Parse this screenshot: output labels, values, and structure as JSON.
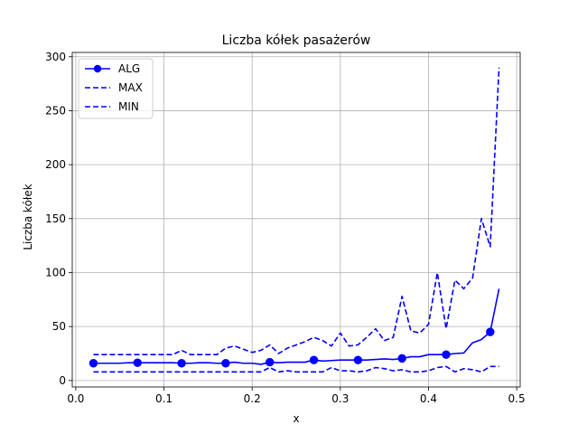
{
  "chart_data": {
    "type": "line",
    "title": "Liczba kółek pasażerów",
    "xlabel": "x",
    "ylabel": "Liczba kółek",
    "xlim": [
      -0.004,
      0.504
    ],
    "ylim": [
      -6,
      304
    ],
    "x_ticks": [
      0.0,
      0.1,
      0.2,
      0.3,
      0.4,
      0.5
    ],
    "x_tick_labels": [
      "0.0",
      "0.1",
      "0.2",
      "0.3",
      "0.4",
      "0.5"
    ],
    "y_ticks": [
      0,
      50,
      100,
      150,
      200,
      250,
      300
    ],
    "y_tick_labels": [
      "0",
      "50",
      "100",
      "150",
      "200",
      "250",
      "300"
    ],
    "grid": true,
    "legend_position": "top-left",
    "x": [
      0.02,
      0.03,
      0.04,
      0.05,
      0.06,
      0.07,
      0.08,
      0.09,
      0.1,
      0.11,
      0.12,
      0.13,
      0.14,
      0.15,
      0.16,
      0.17,
      0.18,
      0.19,
      0.2,
      0.21,
      0.22,
      0.23,
      0.24,
      0.25,
      0.26,
      0.27,
      0.28,
      0.29,
      0.3,
      0.31,
      0.32,
      0.33,
      0.34,
      0.35,
      0.36,
      0.37,
      0.38,
      0.39,
      0.4,
      0.41,
      0.42,
      0.43,
      0.44,
      0.45,
      0.46,
      0.47,
      0.48
    ],
    "series": [
      {
        "name": "ALG",
        "color": "#0000ff",
        "style": "solid",
        "marker": "circle",
        "marker_every": 5,
        "values": [
          16,
          16,
          16,
          16,
          16.5,
          16.5,
          16.5,
          16.5,
          16.5,
          16.5,
          16,
          16,
          16.5,
          16.5,
          16,
          16,
          17,
          16,
          16,
          15,
          17,
          16.5,
          17,
          17,
          17,
          19,
          18,
          18.5,
          19,
          19,
          19,
          19,
          19.5,
          20,
          19.5,
          20.5,
          22,
          22,
          24,
          24,
          24,
          25,
          25.5,
          35,
          38,
          45,
          85
        ]
      },
      {
        "name": "MAX",
        "color": "#0000ff",
        "style": "dashed",
        "values": [
          24,
          24,
          24,
          24,
          24,
          24,
          24,
          24,
          24,
          24,
          28,
          24,
          24,
          24,
          24,
          30,
          32,
          29,
          26,
          28,
          33,
          25,
          30,
          33,
          36,
          40,
          37,
          32,
          44,
          32,
          33,
          40,
          48,
          37,
          40,
          78,
          46,
          44,
          52,
          100,
          48,
          93,
          85,
          95,
          150,
          124,
          290
        ]
      },
      {
        "name": "MIN",
        "color": "#0000ff",
        "style": "dashed",
        "values": [
          8,
          8,
          8,
          8,
          8,
          8,
          8,
          8,
          8,
          8,
          8,
          8,
          8,
          8,
          8,
          8,
          8,
          8,
          8,
          8,
          12,
          8,
          9,
          8,
          8,
          8,
          8,
          12,
          9,
          9,
          8,
          9,
          12,
          11,
          9,
          10,
          8,
          8,
          9,
          12,
          13,
          8,
          11,
          10,
          8,
          13,
          13
        ]
      }
    ]
  }
}
